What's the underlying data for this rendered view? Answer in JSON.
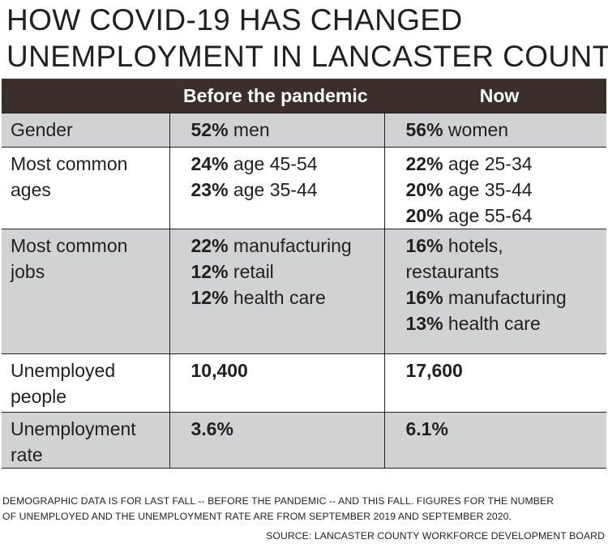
{
  "title": {
    "line1": "HOW COVID-19 HAS CHANGED",
    "line2": "UNEMPLOYMENT IN LANCASTER COUNTY"
  },
  "table": {
    "headers": [
      "",
      "Before the pandemic",
      "Now"
    ],
    "rows": [
      {
        "label_lines": [
          "Gender"
        ],
        "before": [
          {
            "value": "52%",
            "text": " men"
          }
        ],
        "now": [
          {
            "value": "56%",
            "text": " women"
          }
        ]
      },
      {
        "label_lines": [
          "Most common",
          "ages"
        ],
        "before": [
          {
            "value": "24%",
            "text": " age 45-54"
          },
          {
            "value": "23%",
            "text": " age 35-44"
          }
        ],
        "now": [
          {
            "value": "22%",
            "text": " age 25-34"
          },
          {
            "value": "20%",
            "text": " age 35-44"
          },
          {
            "value": "20%",
            "text": " age 55-64"
          }
        ]
      },
      {
        "label_lines": [
          "Most common",
          "jobs"
        ],
        "before": [
          {
            "value": "22%",
            "text": " manufacturing"
          },
          {
            "value": "12%",
            "text": " retail"
          },
          {
            "value": "12%",
            "text": " health care"
          }
        ],
        "now": [
          {
            "value": "16%",
            "text": " hotels,",
            "continuation": "restaurants"
          },
          {
            "value": "16%",
            "text": " manufacturing"
          },
          {
            "value": "13%",
            "text": " health care"
          }
        ]
      },
      {
        "label_lines": [
          "Unemployed",
          "people"
        ],
        "before": [
          {
            "value": "10,400",
            "text": ""
          }
        ],
        "now": [
          {
            "value": "17,600",
            "text": ""
          }
        ]
      },
      {
        "label_lines": [
          "Unemployment",
          "rate"
        ],
        "before": [
          {
            "value": "3.6%",
            "text": ""
          }
        ],
        "now": [
          {
            "value": "6.1%",
            "text": ""
          }
        ]
      }
    ]
  },
  "note": {
    "line1": "DEMOGRAPHIC DATA IS FOR LAST FALL -- BEFORE THE PANDEMIC -- AND THIS FALL. FIGURES FOR THE NUMBER",
    "line2": "OF UNEMPLOYED AND THE UNEMPLOYMENT RATE ARE FROM SEPTEMBER 2019 AND SEPTEMBER 2020."
  },
  "source": "SOURCE: LANCASTER COUNTY WORKFORCE DEVELOPMENT BOARD",
  "colors": {
    "header_background": "#3b2f2b",
    "shaded_row": "#d1d2d3",
    "text": "#231f20"
  }
}
